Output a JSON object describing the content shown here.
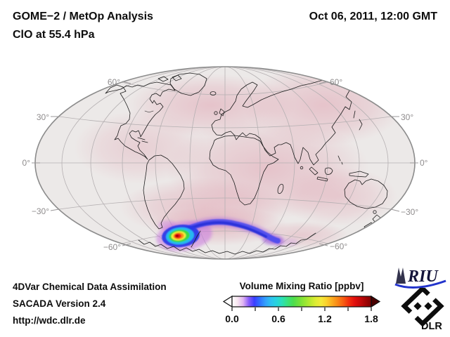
{
  "header": {
    "title_line1": "GOME−2 / MetOp Analysis",
    "title_line2": "ClO at 55.4 hPa",
    "timestamp": "Oct 06, 2011, 12:00 GMT"
  },
  "map": {
    "lat_labels": [
      "60°",
      "30°",
      "0°",
      "−30°",
      "−60°"
    ]
  },
  "colorbar": {
    "title": "Volume Mixing Ratio [ppbv]",
    "tick_labels": [
      "0.0",
      "0.6",
      "1.2",
      "1.8"
    ],
    "range_min": 0.0,
    "range_max": 1.8,
    "left_arrow_color": "#ffffff",
    "right_arrow_color": "#4a0000",
    "gradient_colors": [
      "#ffffff",
      "#f7e6f0",
      "#dfb2f2",
      "#8a5cfa",
      "#3a3eff",
      "#2f72ff",
      "#33a0fc",
      "#2ec2f0",
      "#27d4de",
      "#2ce0b4",
      "#3ae27c",
      "#4cdd4e",
      "#70e03c",
      "#93e633",
      "#b9e930",
      "#ddec33",
      "#f4e93a",
      "#fbd02c",
      "#fbaa1f",
      "#f98516",
      "#f75c12",
      "#f22e0e",
      "#e2100e",
      "#c50909",
      "#a30404",
      "#7e0000"
    ]
  },
  "footer": {
    "lines": [
      "4DVar Chemical Data Assimilation",
      "SACADA Version 2.4",
      "http://wdc.dlr.de"
    ]
  },
  "logos": {
    "riu_text": "RIU",
    "dlr_text": "DLR",
    "riu_swoosh_color": "#2233cc",
    "riu_text_color": "#14143a"
  },
  "chart_data": {
    "type": "heatmap",
    "title": "GOME−2 / MetOp Analysis",
    "variable": "ClO at 55.4 hPa",
    "timestamp": "Oct 06, 2011, 12:00 GMT",
    "projection": "elliptical world map (Hammer/Mollweide style), graticule every 30 degrees",
    "latitude_tick_labels_deg": [
      60,
      30,
      0,
      -30,
      -60
    ],
    "colorbar": {
      "label": "Volume Mixing Ratio [ppbv]",
      "min": 0.0,
      "max": 1.8,
      "major_ticks": [
        0.0,
        0.6,
        1.2,
        1.8
      ],
      "minor_ticks": [
        0.3,
        0.9,
        1.5
      ],
      "orientation": "horizontal, arrow endcaps both sides"
    },
    "features": [
      {
        "name": "antarctic-clo-maximum",
        "description": "Intense ClO maximum over the Antarctic Peninsula / Weddell Sea sector (~65°S, ~60°W) with concentric rainbow contours",
        "peak_ppbv": 1.8
      },
      {
        "name": "vortex-filament",
        "description": "Blue filament (~0.5–0.8 ppbv) stretching eastward along ~60°S from the maximum, ending in a purple patch (~0.2–0.4 ppbv)",
        "approx_ppbv": 0.7
      },
      {
        "name": "background-field",
        "description": "Global background below ~0.2 ppbv shown as a pale pink wash over the whole map",
        "approx_ppbv": 0.1
      }
    ]
  }
}
